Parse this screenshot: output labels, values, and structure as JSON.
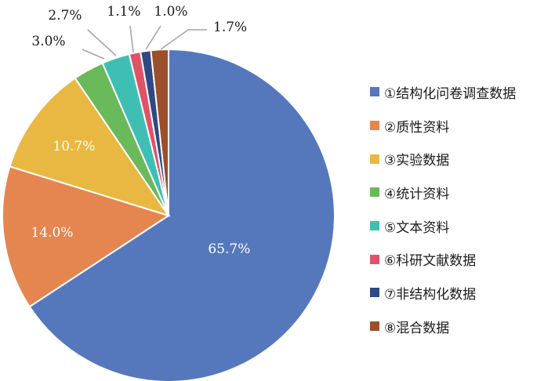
{
  "chart_data": {
    "type": "pie",
    "title": "",
    "slices": [
      {
        "name": "①结构化问卷调查数据",
        "value": 65.7,
        "label": "65.7%",
        "color": "#5578bd"
      },
      {
        "name": "②质性资料",
        "value": 14.0,
        "label": "14.0%",
        "color": "#e58650"
      },
      {
        "name": "③实验数据",
        "value": 10.7,
        "label": "10.7%",
        "color": "#e9b842"
      },
      {
        "name": "④统计资料",
        "value": 3.0,
        "label": "3.0%",
        "color": "#6ab95a"
      },
      {
        "name": "⑤文本资料",
        "value": 2.7,
        "label": "2.7%",
        "color": "#3fbfb3"
      },
      {
        "name": "⑥科研文献数据",
        "value": 1.1,
        "label": "1.1%",
        "color": "#e05268"
      },
      {
        "name": "⑦非结构化数据",
        "value": 1.0,
        "label": "1.0%",
        "color": "#2f4a83"
      },
      {
        "name": "⑧混合数据",
        "value": 1.7,
        "label": "1.7%",
        "color": "#9b4f2a"
      }
    ],
    "legend_position": "right",
    "inside_labels": [
      0,
      1,
      2
    ]
  }
}
